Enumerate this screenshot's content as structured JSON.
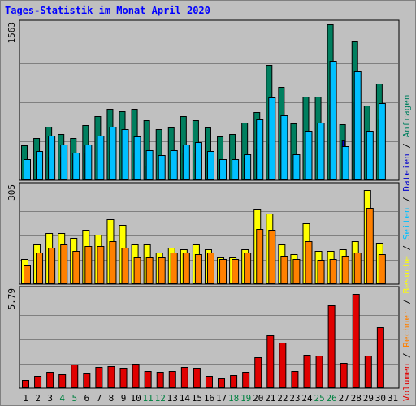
{
  "chart_data": {
    "type": "bar",
    "title": "Tages-Statistik im Monat April 2020",
    "categories": [
      "1",
      "2",
      "3",
      "4",
      "5",
      "6",
      "7",
      "8",
      "9",
      "10",
      "11",
      "12",
      "13",
      "14",
      "15",
      "16",
      "17",
      "18",
      "19",
      "20",
      "21",
      "22",
      "23",
      "24",
      "25",
      "26",
      "27",
      "28",
      "29",
      "30",
      "31"
    ],
    "weekend_days": [
      "4",
      "5",
      "11",
      "12",
      "18",
      "19",
      "25",
      "26"
    ],
    "colors": {
      "anfragen": "#007f5f",
      "dateien": "#0000cc",
      "seiten": "#00c0ff",
      "besuche": "#ffff00",
      "rechner": "#ff8000",
      "volumen": "#e00000",
      "weekend_label": "#008040",
      "weekday_label": "#000000",
      "panel_bg": "#c0c0c0",
      "grid": "#808080"
    },
    "panels": [
      {
        "ymax_label": "1563",
        "ymax": 1563,
        "series": [
          {
            "name": "Anfragen",
            "values": [
              350,
              420,
              540,
              460,
              420,
              550,
              640,
              720,
              690,
              720,
              600,
              510,
              530,
              640,
              600,
              530,
              440,
              460,
              580,
              680,
              1160,
              940,
              570,
              840,
              840,
              1563,
              560,
              1390,
              750,
              970,
              0
            ]
          },
          {
            "name": "Dateien",
            "values": [
              180,
              200,
              240,
              240,
              200,
              270,
              270,
              290,
              260,
              270,
              140,
              180,
              200,
              280,
              280,
              220,
              180,
              180,
              220,
              320,
              370,
              300,
              200,
              350,
              380,
              760,
              400,
              780,
              300,
              620,
              0
            ]
          },
          {
            "name": "Seiten",
            "values": [
              210,
              290,
              450,
              360,
              280,
              360,
              450,
              540,
              510,
              440,
              300,
              250,
              300,
              360,
              380,
              290,
              210,
              210,
              260,
              610,
              830,
              650,
              260,
              500,
              580,
              1200,
              340,
              1090,
              500,
              770,
              0
            ]
          }
        ]
      },
      {
        "ymax_label": "305",
        "ymax": 305,
        "series": [
          {
            "name": "Besuche",
            "values": [
              80,
              125,
              160,
              160,
              145,
              170,
              155,
              203,
              185,
              125,
              125,
              100,
              115,
              110,
              125,
              110,
              85,
              85,
              110,
              235,
              222,
              125,
              95,
              190,
              105,
              105,
              110,
              135,
              295,
              130,
              0
            ]
          },
          {
            "name": "Rechner",
            "values": [
              60,
              100,
              115,
              125,
              105,
              120,
              120,
              135,
              115,
              85,
              85,
              85,
              100,
              100,
              95,
              100,
              80,
              80,
              100,
              172,
              170,
              90,
              80,
              135,
              75,
              80,
              90,
              100,
              240,
              95,
              0
            ]
          }
        ]
      },
      {
        "ymax_label": "5.79",
        "ymax": 5.79,
        "series": [
          {
            "name": "Volumen",
            "values": [
              0.5,
              0.7,
              0.95,
              0.8,
              1.4,
              0.9,
              1.25,
              1.3,
              1.2,
              1.45,
              1.0,
              0.95,
              1.0,
              1.25,
              1.2,
              0.7,
              0.6,
              0.75,
              0.95,
              1.85,
              3.15,
              2.7,
              1.0,
              2.0,
              1.95,
              4.9,
              1.5,
              5.6,
              1.95,
              3.6,
              0
            ]
          }
        ]
      }
    ],
    "side_legend": [
      {
        "label": "Volumen",
        "color": "#e00000"
      },
      {
        "label": " / ",
        "color": "#000000"
      },
      {
        "label": "Rechner",
        "color": "#ff8000"
      },
      {
        "label": " / ",
        "color": "#000000"
      },
      {
        "label": "Besuche",
        "color": "#ffff00"
      },
      {
        "label": " / ",
        "color": "#000000"
      },
      {
        "label": "Seiten",
        "color": "#00c0ff"
      },
      {
        "label": " / ",
        "color": "#000000"
      },
      {
        "label": "Dateien",
        "color": "#0000cc"
      },
      {
        "label": " / ",
        "color": "#000000"
      },
      {
        "label": "Anfragen",
        "color": "#007f5f"
      }
    ]
  }
}
